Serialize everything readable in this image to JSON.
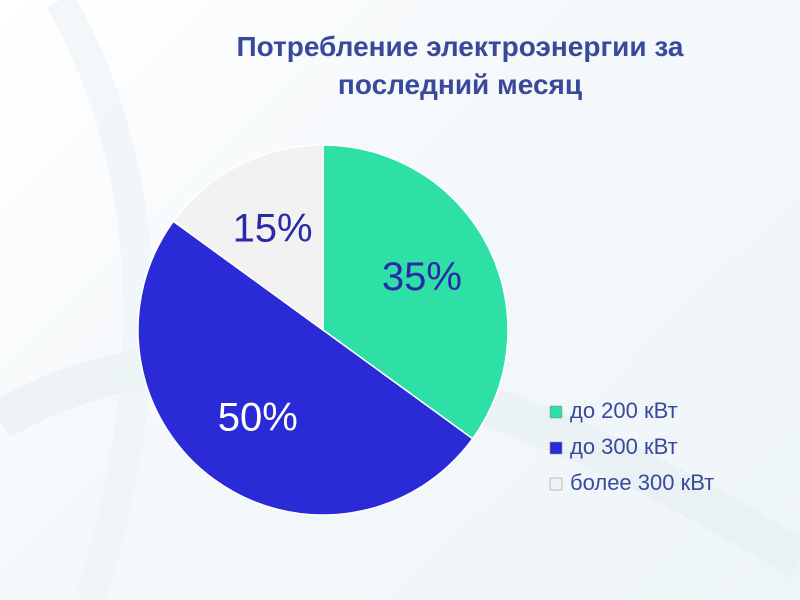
{
  "chart_data": {
    "type": "pie",
    "title": "Потребление электроэнергии за последний месяц",
    "categories": [
      "до 200 кВт",
      "до 300 кВт",
      "более 300 кВт"
    ],
    "values": [
      35,
      50,
      15
    ],
    "value_labels": [
      "35%",
      "50%",
      "15%"
    ],
    "colors": [
      "#2fe0a6",
      "#2a2ad6",
      "#f2f2f2"
    ],
    "legend": "right"
  }
}
